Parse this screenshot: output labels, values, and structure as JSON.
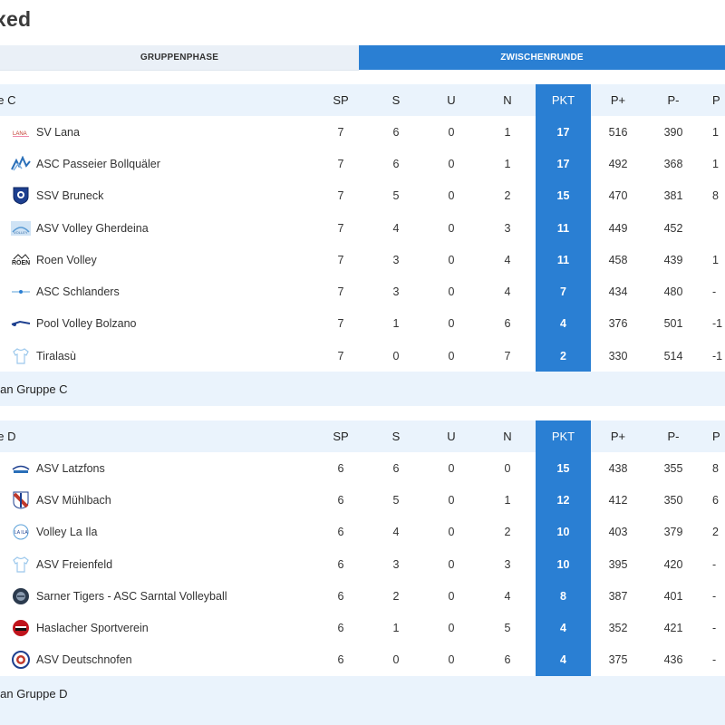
{
  "title": "xed",
  "tabs": [
    {
      "label": "GRUPPENPHASE",
      "active": false
    },
    {
      "label": "ZWISCHENRUNDE",
      "active": true
    }
  ],
  "columns": {
    "sp": "SP",
    "s": "S",
    "u": "U",
    "n": "N",
    "pkt": "PKT",
    "pp": "P+",
    "pm": "P-",
    "diff": "P"
  },
  "groups": [
    {
      "name": "pe C",
      "footer": "plan Gruppe C",
      "rows": [
        {
          "logo": "sv-lana-logo",
          "team": "SV Lana",
          "sp": "7",
          "s": "6",
          "u": "0",
          "n": "1",
          "pkt": "17",
          "pp": "516",
          "pm": "390",
          "diff": "1"
        },
        {
          "logo": "asc-passeier-logo",
          "team": "ASC Passeier Bollquäler",
          "sp": "7",
          "s": "6",
          "u": "0",
          "n": "1",
          "pkt": "17",
          "pp": "492",
          "pm": "368",
          "diff": "1"
        },
        {
          "logo": "ssv-bruneck-logo",
          "team": "SSV Bruneck",
          "sp": "7",
          "s": "5",
          "u": "0",
          "n": "2",
          "pkt": "15",
          "pp": "470",
          "pm": "381",
          "diff": "8"
        },
        {
          "logo": "asv-gherdeina-logo",
          "team": "ASV Volley Gherdeina",
          "sp": "7",
          "s": "4",
          "u": "0",
          "n": "3",
          "pkt": "11",
          "pp": "449",
          "pm": "452",
          "diff": ""
        },
        {
          "logo": "roen-volley-logo",
          "team": "Roen Volley",
          "sp": "7",
          "s": "3",
          "u": "0",
          "n": "4",
          "pkt": "11",
          "pp": "458",
          "pm": "439",
          "diff": "1"
        },
        {
          "logo": "asc-schlanders-logo",
          "team": "ASC Schlanders",
          "sp": "7",
          "s": "3",
          "u": "0",
          "n": "4",
          "pkt": "7",
          "pp": "434",
          "pm": "480",
          "diff": "-"
        },
        {
          "logo": "pool-volley-bolzano-logo",
          "team": "Pool Volley Bolzano",
          "sp": "7",
          "s": "1",
          "u": "0",
          "n": "6",
          "pkt": "4",
          "pp": "376",
          "pm": "501",
          "diff": "-1"
        },
        {
          "logo": "jersey-icon",
          "team": "Tiralasù",
          "sp": "7",
          "s": "0",
          "u": "0",
          "n": "7",
          "pkt": "2",
          "pp": "330",
          "pm": "514",
          "diff": "-1"
        }
      ]
    },
    {
      "name": "pe D",
      "footer": "plan Gruppe D",
      "rows": [
        {
          "logo": "asv-latzfons-logo",
          "team": "ASV Latzfons",
          "sp": "6",
          "s": "6",
          "u": "0",
          "n": "0",
          "pkt": "15",
          "pp": "438",
          "pm": "355",
          "diff": "8"
        },
        {
          "logo": "asv-muehlbach-logo",
          "team": "ASV Mühlbach",
          "sp": "6",
          "s": "5",
          "u": "0",
          "n": "1",
          "pkt": "12",
          "pp": "412",
          "pm": "350",
          "diff": "6"
        },
        {
          "logo": "volley-la-ila-logo",
          "team": "Volley La Ila",
          "sp": "6",
          "s": "4",
          "u": "0",
          "n": "2",
          "pkt": "10",
          "pp": "403",
          "pm": "379",
          "diff": "2"
        },
        {
          "logo": "jersey-icon",
          "team": "ASV Freienfeld",
          "sp": "6",
          "s": "3",
          "u": "0",
          "n": "3",
          "pkt": "10",
          "pp": "395",
          "pm": "420",
          "diff": "-"
        },
        {
          "logo": "sarner-tigers-logo",
          "team": "Sarner Tigers - ASC Sarntal Volleyball",
          "sp": "6",
          "s": "2",
          "u": "0",
          "n": "4",
          "pkt": "8",
          "pp": "387",
          "pm": "401",
          "diff": "-"
        },
        {
          "logo": "haslacher-logo",
          "team": "Haslacher Sportverein",
          "sp": "6",
          "s": "1",
          "u": "0",
          "n": "5",
          "pkt": "4",
          "pp": "352",
          "pm": "421",
          "diff": "-"
        },
        {
          "logo": "asv-deutschnofen-logo",
          "team": "ASV Deutschnofen",
          "sp": "6",
          "s": "0",
          "u": "0",
          "n": "6",
          "pkt": "4",
          "pp": "375",
          "pm": "436",
          "diff": "-"
        }
      ]
    }
  ],
  "colors": {
    "accent": "#2a7fd3",
    "header_bg": "#eaf3fc",
    "text": "#333333"
  }
}
